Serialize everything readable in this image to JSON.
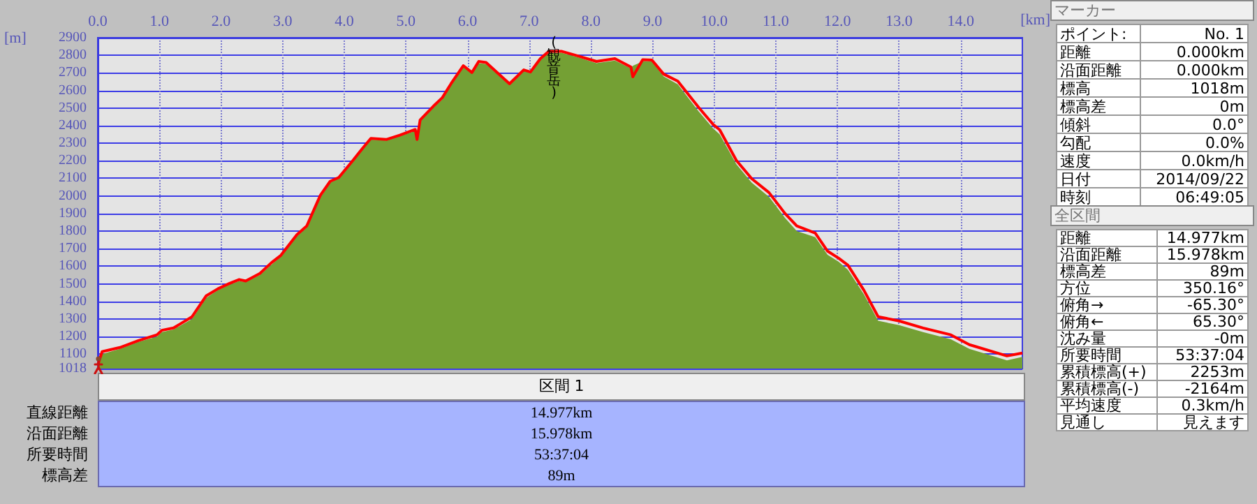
{
  "chart_data": [
    {
      "type": "line",
      "xlabel": "[km]",
      "ylabel": "[m]",
      "x": [
        0,
        0.07,
        0.36,
        0.66,
        0.96,
        1.04,
        1.23,
        1.53,
        1.76,
        1.95,
        2.14,
        2.29,
        2.4,
        2.63,
        2.82,
        2.97,
        3.23,
        3.39,
        3.61,
        3.77,
        3.91,
        4.14,
        4.3,
        4.43,
        4.68,
        4.9,
        5.15,
        5.18,
        5.23,
        5.47,
        5.59,
        5.73,
        5.93,
        6.07,
        6.18,
        6.3,
        6.68,
        6.91,
        7.02,
        7.18,
        7.32,
        7.52,
        7.78,
        8.09,
        8.39,
        8.65,
        8.68,
        8.84,
        8.99,
        9.18,
        9.41,
        9.75,
        9.98,
        10.09,
        10.36,
        10.61,
        10.89,
        11.15,
        11.34,
        11.64,
        11.84,
        12.02,
        12.17,
        12.43,
        12.66,
        13.0,
        13.39,
        13.84,
        14.14,
        14.75,
        15.0
      ],
      "series": [
        {
          "type": "area",
          "color": "#74a034",
          "values": [
            1030,
            1100,
            1130,
            1170,
            1200,
            1225,
            1240,
            1300,
            1420,
            1465,
            1495,
            1515,
            1510,
            1550,
            1610,
            1655,
            1770,
            1820,
            1990,
            2075,
            2100,
            2195,
            2265,
            2320,
            2315,
            2340,
            2370,
            2370,
            2425,
            2510,
            2550,
            2630,
            2735,
            2695,
            2755,
            2750,
            2630,
            2710,
            2700,
            2775,
            2815,
            2815,
            2790,
            2755,
            2770,
            2725,
            2740,
            2765,
            2765,
            2680,
            2635,
            2480,
            2385,
            2350,
            2180,
            2075,
            1995,
            1875,
            1800,
            1765,
            1665,
            1625,
            1580,
            1440,
            1290,
            1265,
            1225,
            1185,
            1130,
            1065,
            1085
          ]
        },
        {
          "color": "#ff0000",
          "values": [
            1037,
            1114,
            1138,
            1177,
            1210,
            1236,
            1249,
            1313,
            1432,
            1472,
            1503,
            1524,
            1516,
            1559,
            1621,
            1662,
            1779,
            1829,
            2003,
            2083,
            2105,
            2202,
            2273,
            2327,
            2321,
            2346,
            2378,
            2321,
            2432,
            2519,
            2559,
            2638,
            2741,
            2702,
            2765,
            2759,
            2638,
            2717,
            2705,
            2781,
            2823,
            2823,
            2797,
            2765,
            2781,
            2733,
            2678,
            2775,
            2773,
            2693,
            2653,
            2503,
            2408,
            2376,
            2202,
            2098,
            2019,
            1900,
            1829,
            1789,
            1686,
            1646,
            1606,
            1463,
            1313,
            1289,
            1249,
            1210,
            1154,
            1090,
            1106
          ]
        }
      ],
      "xlim": [
        0,
        15.0
      ],
      "xticks": [
        {
          "value": 0,
          "label": "0.0"
        },
        {
          "value": 1,
          "label": "1.0"
        },
        {
          "value": 2,
          "label": "2.0"
        },
        {
          "value": 3,
          "label": "3.0"
        },
        {
          "value": 4,
          "label": "4.0"
        },
        {
          "value": 5,
          "label": "5.0"
        },
        {
          "value": 6,
          "label": "6.0"
        },
        {
          "value": 7,
          "label": "7.0"
        },
        {
          "value": 8,
          "label": "8.0"
        },
        {
          "value": 9,
          "label": "9.0"
        },
        {
          "value": 10,
          "label": "10.0"
        },
        {
          "value": 11,
          "label": "11.0"
        },
        {
          "value": 12,
          "label": "12.0"
        },
        {
          "value": 13,
          "label": "13.0"
        },
        {
          "value": 14,
          "label": "14.0"
        }
      ],
      "ylim": [
        1018,
        2900
      ],
      "yticks": [
        1018,
        1100,
        1200,
        1300,
        1400,
        1500,
        1600,
        1700,
        1800,
        1900,
        2000,
        2100,
        2200,
        2300,
        2400,
        2500,
        2600,
        2700,
        2800,
        2900
      ],
      "grid": true,
      "marker": "none",
      "line_style": "solid",
      "annotations": [
        {
          "text": "(観音岳)",
          "x": 7.4,
          "y": 2823
        }
      ]
    },
    {
      "type": "other",
      "title": "区間 1",
      "annotations": [
        "直線距離",
        "14.977km",
        "沿面距離",
        "15.978km",
        "所要時間",
        "53:37:04",
        "標高差",
        "89m"
      ]
    },
    {
      "type": "other",
      "title": "マーカー",
      "annotations": [
        "ポイント:",
        "No. 1",
        "距離",
        "0.000km",
        "沿面距離",
        "0.000km",
        "標高",
        "1018m",
        "標高差",
        "0m",
        "傾斜",
        "0.0°",
        "勾配",
        "0.0%",
        "速度",
        "0.0km/h",
        "日付",
        "2014/09/22",
        "時刻",
        "06:49:05"
      ]
    },
    {
      "type": "other",
      "title": "全区間",
      "annotations": [
        "距離",
        "14.977km",
        "沿面距離",
        "15.978km",
        "標高差",
        "89m",
        "方位",
        "350.16°",
        "俯角→",
        "-65.30°",
        "俯角←",
        "65.30°",
        "沈み量",
        "-0m",
        "所要時間",
        "53:37:04",
        "累積標高(+)",
        "2253m",
        "累積標高(-)",
        "-2164m",
        "平均速度",
        "0.3km/h",
        "見通し",
        "見えます"
      ]
    }
  ]
}
